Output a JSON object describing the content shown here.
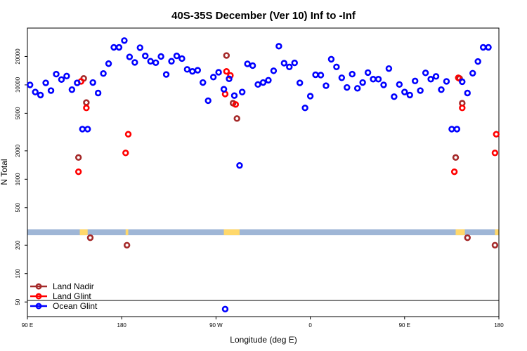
{
  "chart_data": {
    "type": "scatter",
    "title": "40S-35S December (Ver 10)   Inf to -Inf",
    "xlabel": "Longitude (deg E)",
    "ylabel": "N Total",
    "xlim": [
      90,
      450
    ],
    "ylim": [
      35,
      40000
    ],
    "yscale": "log",
    "x_ticks": [
      {
        "value": 90,
        "label": "90 E"
      },
      {
        "value": 162,
        "label": "180"
      },
      {
        "value": 234,
        "label": "90 W"
      },
      {
        "value": 306,
        "label": "0"
      },
      {
        "value": 378,
        "label": "90 E"
      },
      {
        "value": 450,
        "label": "180"
      }
    ],
    "y_ticks": [
      50,
      100,
      200,
      500,
      1000,
      2000,
      5000,
      10000,
      20000
    ],
    "legend_position": "bottom-left",
    "colors": {
      "land_nadir": "#a52a2a",
      "land_glint": "#ff0000",
      "ocean_glint": "#0000ff",
      "map_band": "#9fb6d6",
      "land_patch": "#ffd86b"
    },
    "map_band_range": [
      255,
      295
    ],
    "series": [
      {
        "name": "Land Nadir",
        "color": "#a52a2a",
        "points": [
          [
            129,
            1700
          ],
          [
            133,
            11700
          ],
          [
            135,
            6500
          ],
          [
            138,
            240
          ],
          [
            166,
            200
          ],
          [
            242,
            20500
          ],
          [
            247,
            6400
          ],
          [
            250,
            4400
          ],
          [
            417,
            1700
          ],
          [
            420,
            11700
          ],
          [
            422,
            6400
          ],
          [
            426,
            240
          ],
          [
            447,
            200
          ]
        ]
      },
      {
        "name": "Land Glint",
        "color": "#ff0000",
        "points": [
          [
            129,
            1200
          ],
          [
            131,
            10900
          ],
          [
            135,
            5700
          ],
          [
            165,
            1900
          ],
          [
            167,
            3000
          ],
          [
            241,
            8000
          ],
          [
            242,
            13900
          ],
          [
            245,
            12600
          ],
          [
            249,
            6200
          ],
          [
            416,
            1200
          ],
          [
            419,
            11900
          ],
          [
            422,
            5700
          ],
          [
            447,
            1900
          ],
          [
            448,
            3000
          ]
        ]
      },
      {
        "name": "Ocean Glint",
        "color": "#0000ff",
        "points": [
          [
            92,
            10000
          ],
          [
            96,
            8400
          ],
          [
            100,
            7800
          ],
          [
            104,
            10500
          ],
          [
            108,
            8700
          ],
          [
            112,
            13000
          ],
          [
            116,
            11400
          ],
          [
            120,
            12400
          ],
          [
            124,
            8900
          ],
          [
            128,
            10500
          ],
          [
            132,
            3400
          ],
          [
            136,
            3400
          ],
          [
            140,
            10600
          ],
          [
            144,
            8200
          ],
          [
            148,
            13200
          ],
          [
            152,
            16800
          ],
          [
            156,
            25000
          ],
          [
            160,
            25000
          ],
          [
            164,
            29500
          ],
          [
            168,
            19800
          ],
          [
            172,
            17300
          ],
          [
            176,
            24800
          ],
          [
            180,
            20300
          ],
          [
            184,
            17800
          ],
          [
            188,
            17200
          ],
          [
            192,
            20000
          ],
          [
            196,
            12900
          ],
          [
            200,
            17800
          ],
          [
            204,
            20300
          ],
          [
            208,
            19000
          ],
          [
            212,
            14600
          ],
          [
            216,
            13900
          ],
          [
            220,
            14300
          ],
          [
            224,
            10600
          ],
          [
            228,
            6800
          ],
          [
            232,
            12100
          ],
          [
            236,
            13600
          ],
          [
            240,
            9000
          ],
          [
            244,
            11600
          ],
          [
            248,
            7700
          ],
          [
            252,
            1400
          ],
          [
            254,
            8400
          ],
          [
            258,
            16700
          ],
          [
            262,
            16000
          ],
          [
            266,
            10100
          ],
          [
            270,
            10600
          ],
          [
            274,
            11200
          ],
          [
            278,
            14100
          ],
          [
            282,
            25700
          ],
          [
            286,
            17000
          ],
          [
            290,
            15500
          ],
          [
            294,
            17100
          ],
          [
            298,
            10500
          ],
          [
            302,
            5700
          ],
          [
            306,
            7600
          ],
          [
            310,
            12800
          ],
          [
            314,
            12700
          ],
          [
            318,
            9800
          ],
          [
            322,
            18700
          ],
          [
            326,
            15500
          ],
          [
            330,
            11900
          ],
          [
            334,
            9400
          ],
          [
            338,
            13000
          ],
          [
            342,
            9200
          ],
          [
            346,
            10600
          ],
          [
            350,
            13500
          ],
          [
            354,
            11500
          ],
          [
            358,
            11500
          ],
          [
            362,
            10000
          ],
          [
            366,
            14900
          ],
          [
            370,
            7500
          ],
          [
            374,
            10100
          ],
          [
            378,
            8400
          ],
          [
            382,
            7800
          ],
          [
            386,
            11000
          ],
          [
            390,
            8700
          ],
          [
            394,
            13400
          ],
          [
            398,
            11500
          ],
          [
            402,
            12300
          ],
          [
            406,
            8900
          ],
          [
            410,
            10900
          ],
          [
            414,
            3400
          ],
          [
            418,
            3400
          ],
          [
            422,
            10800
          ],
          [
            426,
            8200
          ],
          [
            430,
            13300
          ],
          [
            434,
            17700
          ],
          [
            438,
            25000
          ],
          [
            442,
            25000
          ],
          [
            241,
            42
          ]
        ]
      }
    ]
  }
}
